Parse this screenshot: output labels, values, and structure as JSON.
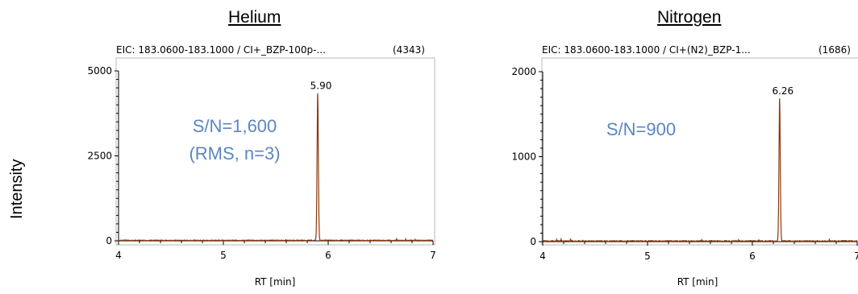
{
  "figure": {
    "y_axis_label": "Intensity"
  },
  "chart_data": [
    {
      "type": "line",
      "panel_title": "Helium",
      "title": "EIC: 183.0600-183.1000 / CI+_BZP-100p-...",
      "title_suffix": "(4343)",
      "xlabel": "RT [min]",
      "ylabel": "",
      "xlim": [
        4,
        7
      ],
      "ylim": [
        0,
        5000
      ],
      "x_ticks": [
        4,
        5,
        6,
        7
      ],
      "y_ticks": [
        0,
        2500,
        5000
      ],
      "x_tick_labels": [
        "4",
        "5",
        "6",
        "7"
      ],
      "y_tick_labels": [
        "0",
        "2500",
        "5000"
      ],
      "series": [
        {
          "color": "#8b3a0f",
          "peak": {
            "x": 5.9,
            "y": 4343,
            "label": "5.90"
          },
          "baseline": 15
        }
      ],
      "annotations": [
        "S/N=1,600",
        "(RMS, n=3)"
      ],
      "grid": false
    },
    {
      "type": "line",
      "panel_title": "Nitrogen",
      "title": "EIC: 183.0600-183.1000 / CI+(N2)_BZP-1...",
      "title_suffix": "(1686)",
      "xlabel": "RT [min]",
      "ylabel": "",
      "xlim": [
        4,
        7
      ],
      "ylim": [
        0,
        2000
      ],
      "x_ticks": [
        4,
        5,
        6,
        7
      ],
      "y_ticks": [
        0,
        1000,
        2000
      ],
      "x_tick_labels": [
        "4",
        "5",
        "6",
        "7"
      ],
      "y_tick_labels": [
        "0",
        "1000",
        "2000"
      ],
      "series": [
        {
          "color": "#8b3a0f",
          "peak": {
            "x": 6.26,
            "y": 1686,
            "label": "6.26"
          },
          "baseline": 8
        }
      ],
      "annotations": [
        "S/N=900"
      ],
      "grid": false
    }
  ]
}
